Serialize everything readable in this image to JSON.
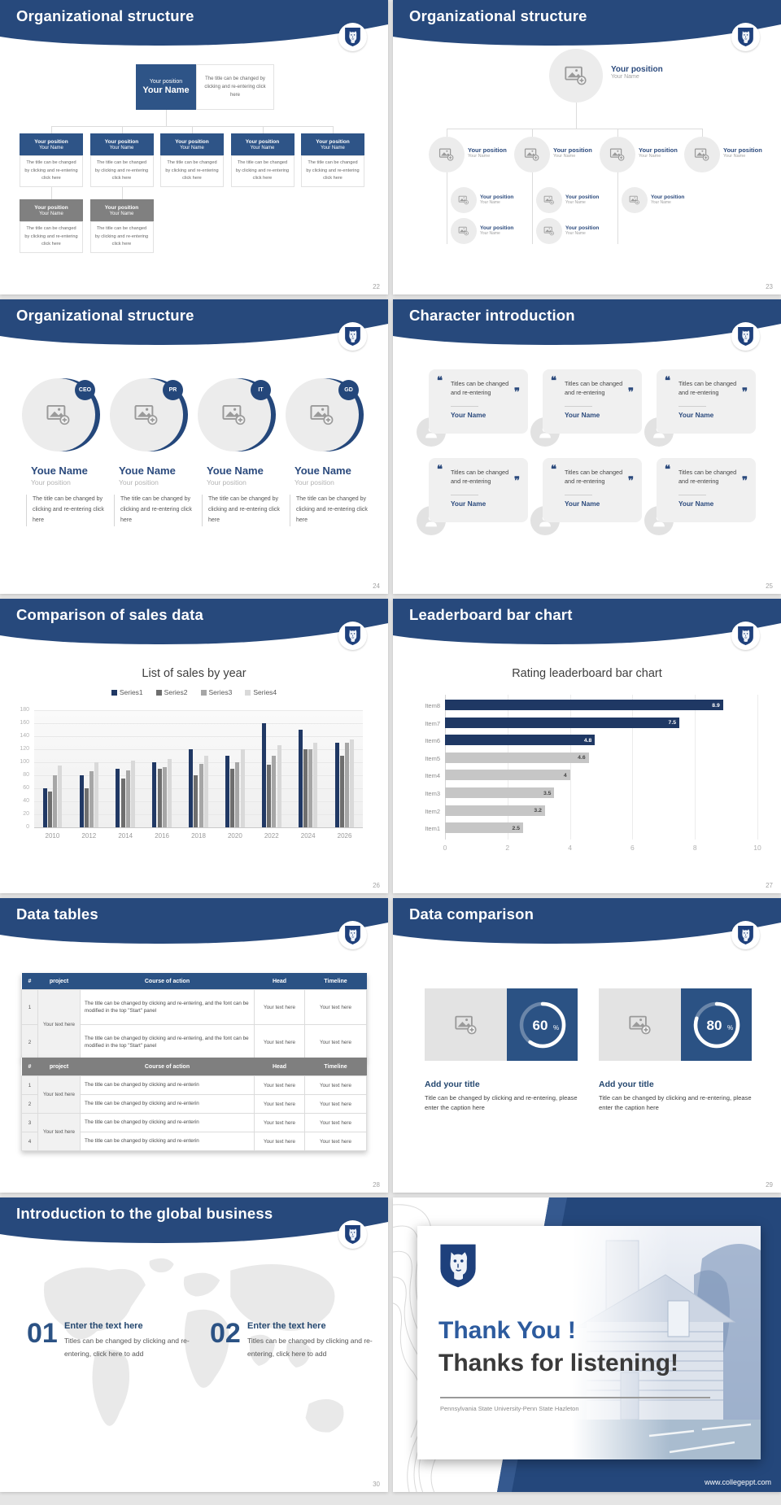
{
  "strings": {
    "your_position": "Your position",
    "your_name": "Your Name",
    "youe_name": "Youe Name",
    "caption_click": "The title can be changed by clicking and re-entering click here",
    "quote_text": "Titles can be changed and re-entering",
    "open_quote": "❝",
    "close_quote": "❞",
    "your_text_here": "Your text here"
  },
  "colors": {
    "header_navy": "#27497c",
    "box_blue": "#2e5487",
    "box_gray": "#808080",
    "accent_navy": "#1f3864",
    "panel_blue": "#2b5284"
  },
  "slides": {
    "s22": {
      "title": "Organizational structure",
      "page": "22"
    },
    "s23": {
      "title": "Organizational structure",
      "page": "23"
    },
    "s24": {
      "title": "Organizational structure",
      "page": "24",
      "badges": [
        "CEO",
        "PR",
        "IT",
        "GD"
      ]
    },
    "s25": {
      "title": "Character introduction",
      "page": "25"
    },
    "s26": {
      "title": "Comparison of sales data",
      "page": "26"
    },
    "s27": {
      "title": "Leaderboard bar chart",
      "page": "27"
    },
    "s28": {
      "title": "Data tables",
      "page": "28",
      "table1": {
        "headers": [
          "#",
          "project",
          "Course of action",
          "Head",
          "Timeline"
        ],
        "project": "Your text here",
        "rows": [
          {
            "num": "1",
            "course": "The title can be changed by clicking and re-entering, and the font can be modified in the top \"Start\" panel",
            "head": "Your text here",
            "timeline": "Your text here"
          },
          {
            "num": "2",
            "course": "The title can be changed by clicking and re-entering, and the font can be modified in the top \"Start\" panel",
            "head": "Your text here",
            "timeline": "Your text here"
          }
        ]
      },
      "table2": {
        "headers": [
          "#",
          "project",
          "Course of action",
          "Head",
          "Timeline"
        ],
        "project": "Your text here",
        "rows": [
          {
            "num": "1",
            "course": "The title can be changed by clicking and re-enterin",
            "head": "Your text here",
            "timeline": "Your text here"
          },
          {
            "num": "2",
            "course": "The title can be changed by clicking and re-enterin",
            "head": "Your text here",
            "timeline": "Your text here"
          },
          {
            "num": "3",
            "course": "The title can be changed by clicking and re-enterin",
            "head": "Your text here",
            "timeline": "Your text here"
          },
          {
            "num": "4",
            "course": "The title can be changed by clicking and re-enterin",
            "head": "Your text here",
            "timeline": "Your text here"
          }
        ]
      }
    },
    "s29": {
      "title": "Data comparison",
      "page": "29",
      "item_title": "Add your title",
      "item_caption": "Title can be changed by clicking and re-entering, please enter the caption here",
      "items": [
        {
          "percent": "60"
        },
        {
          "percent": "80"
        }
      ]
    },
    "s30": {
      "title": "Introduction to the global business",
      "page": "30",
      "steps": [
        {
          "num": "01",
          "heading": "Enter the text here",
          "body": "Titles can be changed by clicking and re-entering, click here to add"
        },
        {
          "num": "02",
          "heading": "Enter the text here",
          "body": "Titles can be changed by clicking and re-entering, click here to add"
        }
      ]
    },
    "s31": {
      "line1": "Thank You !",
      "line2": "Thanks for listening!",
      "subtitle": "Pennsylvania State University-Penn State Hazleton",
      "footer": "www.collegeppt.com"
    }
  },
  "chart_data": [
    {
      "type": "bar",
      "title": "List of sales by year",
      "categories": [
        "2010",
        "2012",
        "2014",
        "2016",
        "2018",
        "2020",
        "2022",
        "2024",
        "2026"
      ],
      "series": [
        {
          "name": "Series1",
          "color": "#203864",
          "values": [
            60,
            80,
            90,
            100,
            120,
            110,
            160,
            150,
            130
          ]
        },
        {
          "name": "Series2",
          "color": "#6e6e6e",
          "values": [
            55,
            60,
            75,
            90,
            80,
            90,
            96,
            120,
            110
          ]
        },
        {
          "name": "Series3",
          "color": "#a6a6a6",
          "values": [
            80,
            86,
            88,
            92,
            98,
            100,
            110,
            120,
            130
          ]
        },
        {
          "name": "Series4",
          "color": "#d9d9d9",
          "values": [
            95,
            100,
            102,
            105,
            110,
            120,
            126,
            130,
            135
          ]
        }
      ],
      "ylim": [
        0,
        180
      ],
      "ytick": 20,
      "grid": true,
      "legend_position": "top"
    },
    {
      "type": "bar-horizontal",
      "title": "Rating leaderboard bar chart",
      "categories": [
        "Item8",
        "Item7",
        "Item6",
        "Item5",
        "Item4",
        "Item3",
        "Item2",
        "Item1"
      ],
      "values": [
        8.9,
        7.5,
        4.8,
        4.6,
        4,
        3.5,
        3.2,
        2.5
      ],
      "colors": [
        "#1f3864",
        "#1f3864",
        "#1f3864",
        "#c6c6c6",
        "#c6c6c6",
        "#c6c6c6",
        "#c6c6c6",
        "#c6c6c6"
      ],
      "xlim": [
        0,
        10
      ],
      "xticks": [
        0,
        2,
        4,
        6,
        8,
        10
      ],
      "grid": true
    }
  ]
}
